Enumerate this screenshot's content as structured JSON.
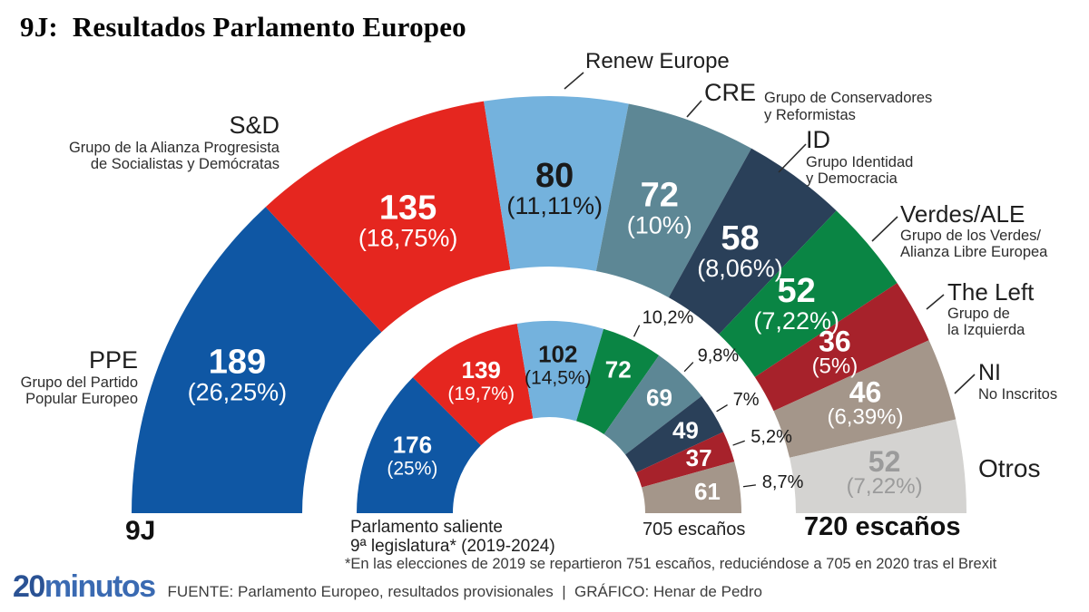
{
  "title": "9J:  Resultados Parlamento Europeo",
  "chart_data": {
    "type": "hemicycle",
    "election_total_seats": 720,
    "outgoing_total_seats": 705,
    "outer_ring": {
      "caption": "720 escaños",
      "axis_label": "9J",
      "segments": [
        {
          "group": "PPE",
          "seats": 189,
          "pct": "(26,25%)",
          "color": "#0f57a4",
          "value_color": "#ffffff"
        },
        {
          "group": "S&D",
          "seats": 135,
          "pct": "(18,75%)",
          "color": "#e5261f",
          "value_color": "#ffffff"
        },
        {
          "group": "Renew Europe",
          "seats": 80,
          "pct": "(11,11%)",
          "color": "#74b2dd",
          "value_color": "#1a1a1a"
        },
        {
          "group": "CRE",
          "seats": 72,
          "pct": "(10%)",
          "color": "#5d8795",
          "value_color": "#ffffff"
        },
        {
          "group": "ID",
          "seats": 58,
          "pct": "(8,06%)",
          "color": "#2a4059",
          "value_color": "#ffffff"
        },
        {
          "group": "Verdes/ALE",
          "seats": 52,
          "pct": "(7,22%)",
          "color": "#0a8544",
          "value_color": "#ffffff"
        },
        {
          "group": "The Left",
          "seats": 36,
          "pct": "(5%)",
          "color": "#a7222b",
          "value_color": "#ffffff"
        },
        {
          "group": "NI",
          "seats": 46,
          "pct": "(6,39%)",
          "color": "#a4968a",
          "value_color": "#ffffff"
        },
        {
          "group": "Otros",
          "seats": 52,
          "pct": "(7,22%)",
          "color": "#d4d3d1",
          "value_color": "#9b9b9b"
        }
      ]
    },
    "inner_ring": {
      "caption": "705 escaños",
      "axis_label_line1": "Parlamento saliente",
      "axis_label_line2": "9ª legislatura* (2019-2024)",
      "segments": [
        {
          "seats": 176,
          "pct": "(25%)",
          "color": "#0f57a4",
          "value_color": "#ffffff"
        },
        {
          "seats": 139,
          "pct": "(19,7%)",
          "color": "#e5261f",
          "value_color": "#ffffff"
        },
        {
          "seats": 102,
          "pct": "(14,5%)",
          "color": "#74b2dd",
          "value_color": "#1a1a1a"
        },
        {
          "seats": 72,
          "outside_pct": "10,2%",
          "color": "#0a8544",
          "value_color": "#ffffff"
        },
        {
          "seats": 69,
          "outside_pct": "9,8%",
          "color": "#5d8795",
          "value_color": "#ffffff"
        },
        {
          "seats": 49,
          "outside_pct": "7%",
          "color": "#2a4059",
          "value_color": "#ffffff"
        },
        {
          "seats": 37,
          "outside_pct": "5,2%",
          "color": "#a7222b",
          "value_color": "#ffffff"
        },
        {
          "seats": 61,
          "outside_pct": "8,7%",
          "color": "#a4968a",
          "value_color": "#ffffff"
        }
      ]
    }
  },
  "labels": {
    "ppe": {
      "name": "PPE",
      "desc1": "Grupo del Partido",
      "desc2": "Popular Europeo"
    },
    "sd": {
      "name": "S&D",
      "desc1": "Grupo de la Alianza Progresista",
      "desc2": "de Socialistas y Demócratas"
    },
    "renew": {
      "name": "Renew Europe"
    },
    "cre": {
      "name": "CRE",
      "desc1": "Grupo de Conservadores",
      "desc2": "y Reformistas"
    },
    "id": {
      "name": "ID",
      "desc1": "Grupo Identidad",
      "desc2": "y Democracia"
    },
    "verdes": {
      "name": "Verdes/ALE",
      "desc1": "Grupo de los Verdes/",
      "desc2": "Alianza Libre Europea"
    },
    "left": {
      "name": "The Left",
      "desc1": "Grupo de",
      "desc2": "la Izquierda"
    },
    "ni": {
      "name": "NI",
      "desc1": "No Inscritos"
    },
    "otros": {
      "name": "Otros"
    }
  },
  "footnote": "*En las elecciones de 2019 se repartieron 751 escaños, reduciéndose a 705 en 2020 tras el Brexit",
  "footer": {
    "logo_20": "20",
    "logo_minutos": "minutos",
    "source": "FUENTE: Parlamento Europeo, resultados provisionales  |  GRÁFICO: Henar de Pedro"
  }
}
